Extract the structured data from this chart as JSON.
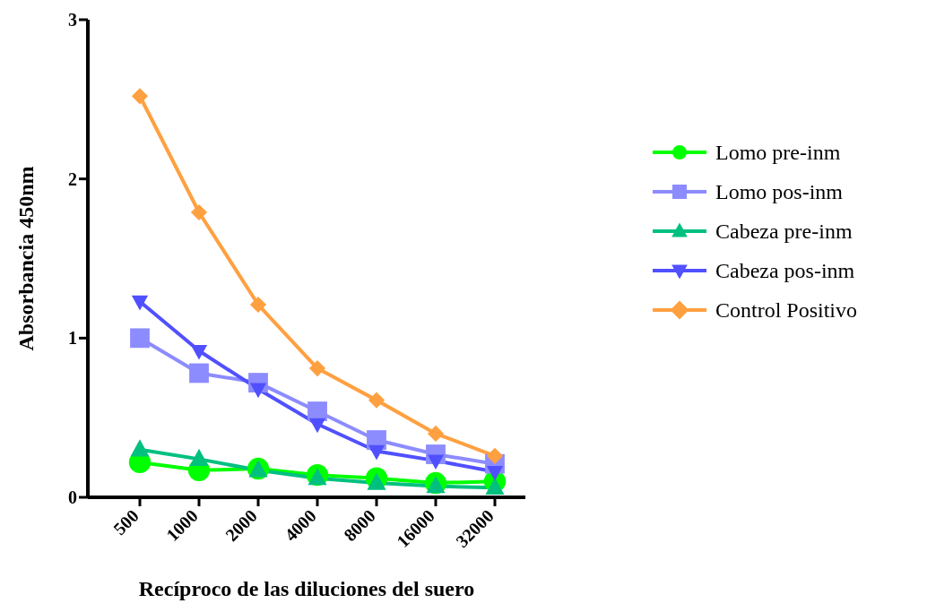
{
  "chart_data": {
    "type": "line",
    "xlabel": "Recíproco de las diluciones del suero",
    "ylabel": "Absorbancia 450nm",
    "categories": [
      "500",
      "1000",
      "2000",
      "4000",
      "8000",
      "16000",
      "32000"
    ],
    "series": [
      {
        "name": "Lomo pre-inm",
        "color": "#00ff00",
        "marker": "circle",
        "values": [
          0.22,
          0.17,
          0.18,
          0.14,
          0.12,
          0.09,
          0.1
        ]
      },
      {
        "name": "Lomo pos-inm",
        "color": "#8c8cff",
        "marker": "square",
        "values": [
          1.0,
          0.78,
          0.72,
          0.54,
          0.36,
          0.27,
          0.21
        ]
      },
      {
        "name": "Cabeza pre-inm",
        "color": "#00c080",
        "marker": "triangle",
        "values": [
          0.3,
          0.24,
          0.17,
          0.12,
          0.09,
          0.07,
          0.06
        ]
      },
      {
        "name": "Cabeza pos-inm",
        "color": "#5050ff",
        "marker": "triangle-down",
        "values": [
          1.23,
          0.92,
          0.68,
          0.46,
          0.29,
          0.23,
          0.16
        ]
      },
      {
        "name": "Control Positivo",
        "color": "#ffa040",
        "marker": "diamond",
        "values": [
          2.52,
          1.79,
          1.21,
          0.81,
          0.61,
          0.4,
          0.26
        ]
      }
    ],
    "ylim": [
      0,
      3
    ],
    "yticks": [
      0,
      1,
      2,
      3
    ],
    "grid": false,
    "legend": "right",
    "line_style": "solid"
  }
}
